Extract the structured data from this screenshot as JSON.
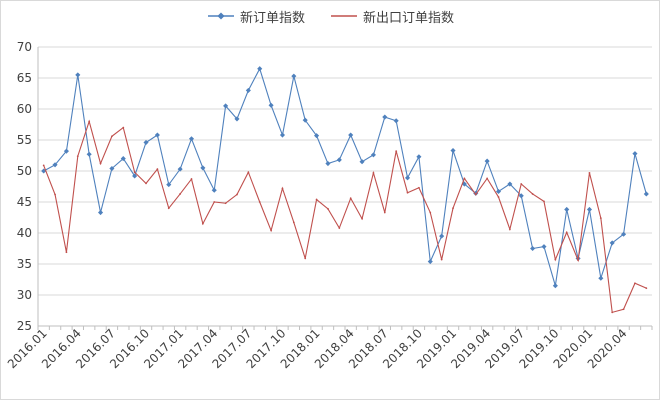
{
  "chart_data": {
    "type": "line",
    "title": "",
    "xlabel": "",
    "ylabel": "",
    "ylim": [
      25,
      70
    ],
    "yticks": [
      25,
      30,
      35,
      40,
      45,
      50,
      55,
      60,
      65,
      70
    ],
    "grid": true,
    "legend_position": "top",
    "x": [
      "2016.01",
      "2016.02",
      "2016.03",
      "2016.04",
      "2016.05",
      "2016.06",
      "2016.07",
      "2016.08",
      "2016.09",
      "2016.10",
      "2016.11",
      "2016.12",
      "2017.01",
      "2017.02",
      "2017.03",
      "2017.04",
      "2017.05",
      "2017.06",
      "2017.07",
      "2017.08",
      "2017.09",
      "2017.10",
      "2017.11",
      "2017.12",
      "2018.01",
      "2018.02",
      "2018.03",
      "2018.04",
      "2018.05",
      "2018.06",
      "2018.07",
      "2018.08",
      "2018.09",
      "2018.10",
      "2018.11",
      "2018.12",
      "2019.01",
      "2019.02",
      "2019.03",
      "2019.04",
      "2019.05",
      "2019.06",
      "2019.07",
      "2019.08",
      "2019.09",
      "2019.10",
      "2019.11",
      "2019.12",
      "2020.01",
      "2020.02",
      "2020.03",
      "2020.04",
      "2020.05",
      "2020.06"
    ],
    "x_tick_labels": [
      "2016.01",
      "2016.04",
      "2016.07",
      "2016.10",
      "2017.01",
      "2017.04",
      "2017.07",
      "2017.10",
      "2018.01",
      "2018.04",
      "2018.07",
      "2018.10",
      "2019.01",
      "2019.04",
      "2019.07",
      "2019.10",
      "2020.01",
      "2020.04"
    ],
    "series": [
      {
        "name": "新订单指数",
        "color": "#4f81bd",
        "marker": "diamond",
        "values": [
          50.0,
          51.0,
          53.2,
          65.5,
          52.7,
          43.3,
          50.4,
          52.0,
          49.2,
          54.6,
          55.8,
          47.8,
          50.3,
          55.2,
          50.5,
          46.9,
          60.5,
          58.4,
          63.0,
          66.5,
          60.6,
          55.8,
          65.3,
          58.2,
          55.7,
          51.2,
          51.8,
          55.8,
          51.5,
          52.6,
          58.7,
          58.1,
          48.9,
          52.3,
          35.4,
          39.5,
          53.3,
          47.9,
          46.4,
          51.6,
          46.7,
          47.9,
          46.0,
          37.5,
          37.8,
          31.5,
          43.8,
          35.9,
          43.8,
          32.7,
          38.4,
          39.8,
          52.8,
          46.3
        ]
      },
      {
        "name": "新出口订单指数",
        "color": "#c0504d",
        "marker": "none",
        "values": [
          50.9,
          46.2,
          36.9,
          52.4,
          58.0,
          51.2,
          55.6,
          57.0,
          49.8,
          48.0,
          50.3,
          44.0,
          46.3,
          48.7,
          41.5,
          45.0,
          44.8,
          46.2,
          49.8,
          45.0,
          40.4,
          47.2,
          41.7,
          35.9,
          45.4,
          43.9,
          40.8,
          45.6,
          42.3,
          49.7,
          43.3,
          53.2,
          46.5,
          47.3,
          43.3,
          35.7,
          44.0,
          48.8,
          46.2,
          48.8,
          45.8,
          40.6,
          47.9,
          46.3,
          45.1,
          35.7,
          40.1,
          35.6,
          49.7,
          42.4,
          27.2,
          27.7,
          31.9,
          31.1
        ]
      }
    ]
  }
}
